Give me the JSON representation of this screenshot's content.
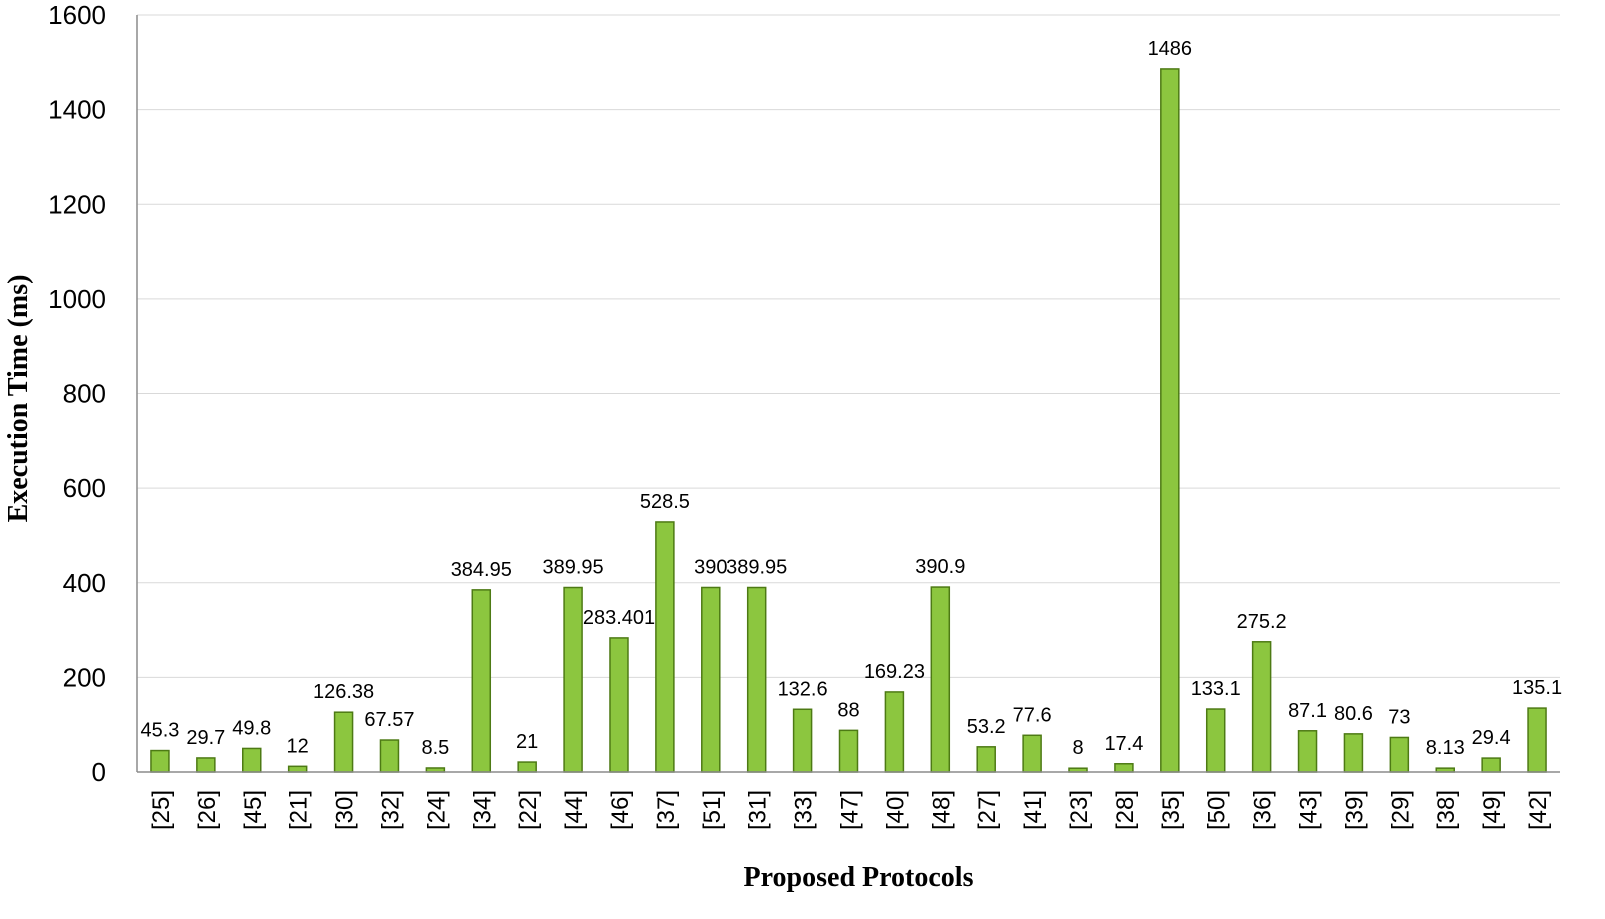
{
  "chart_data": {
    "type": "bar",
    "title": "",
    "xlabel": "Proposed Protocols",
    "ylabel": "Execution Time (ms)",
    "ylim": [
      0,
      1600
    ],
    "yticks": [
      0,
      200,
      400,
      600,
      800,
      1000,
      1200,
      1400,
      1600
    ],
    "grid": true,
    "legend": "none",
    "bar_color": "#8cc63f",
    "bar_edge_color": "#4d7a14",
    "categories": [
      "[25]",
      "[26]",
      "[45]",
      "[21]",
      "[30]",
      "[32]",
      "[24]",
      "[34]",
      "[22]",
      "[44]",
      "[46]",
      "[37]",
      "[51]",
      "[31]",
      "[33]",
      "[47]",
      "[40]",
      "[48]",
      "[27]",
      "[41]",
      "[23]",
      "[28]",
      "[35]",
      "[50]",
      "[36]",
      "[43]",
      "[39]",
      "[29]",
      "[38]",
      "[49]",
      "[42]"
    ],
    "values": [
      45.3,
      29.7,
      49.8,
      12,
      126.38,
      67.57,
      8.5,
      384.95,
      21,
      389.95,
      283.401,
      528.5,
      390,
      389.95,
      132.6,
      88,
      169.23,
      390.9,
      53.2,
      77.6,
      8,
      17.4,
      1486,
      133.1,
      275.2,
      87.1,
      80.6,
      73,
      8.13,
      29.4,
      135.1
    ],
    "data_labels": [
      "45.3",
      "29.7",
      "49.8",
      "12",
      "126.38",
      "67.57",
      "8.5",
      "384.95",
      "21",
      "389.95",
      "283.401",
      "528.5",
      "390",
      "389.95",
      "132.6",
      "88",
      "169.23",
      "390.9",
      "53.2",
      "77.6",
      "8",
      "17.4",
      "1486",
      "133.1",
      "275.2",
      "87.1",
      "80.6",
      "73",
      "8.13",
      "29.4",
      "135.1"
    ]
  }
}
